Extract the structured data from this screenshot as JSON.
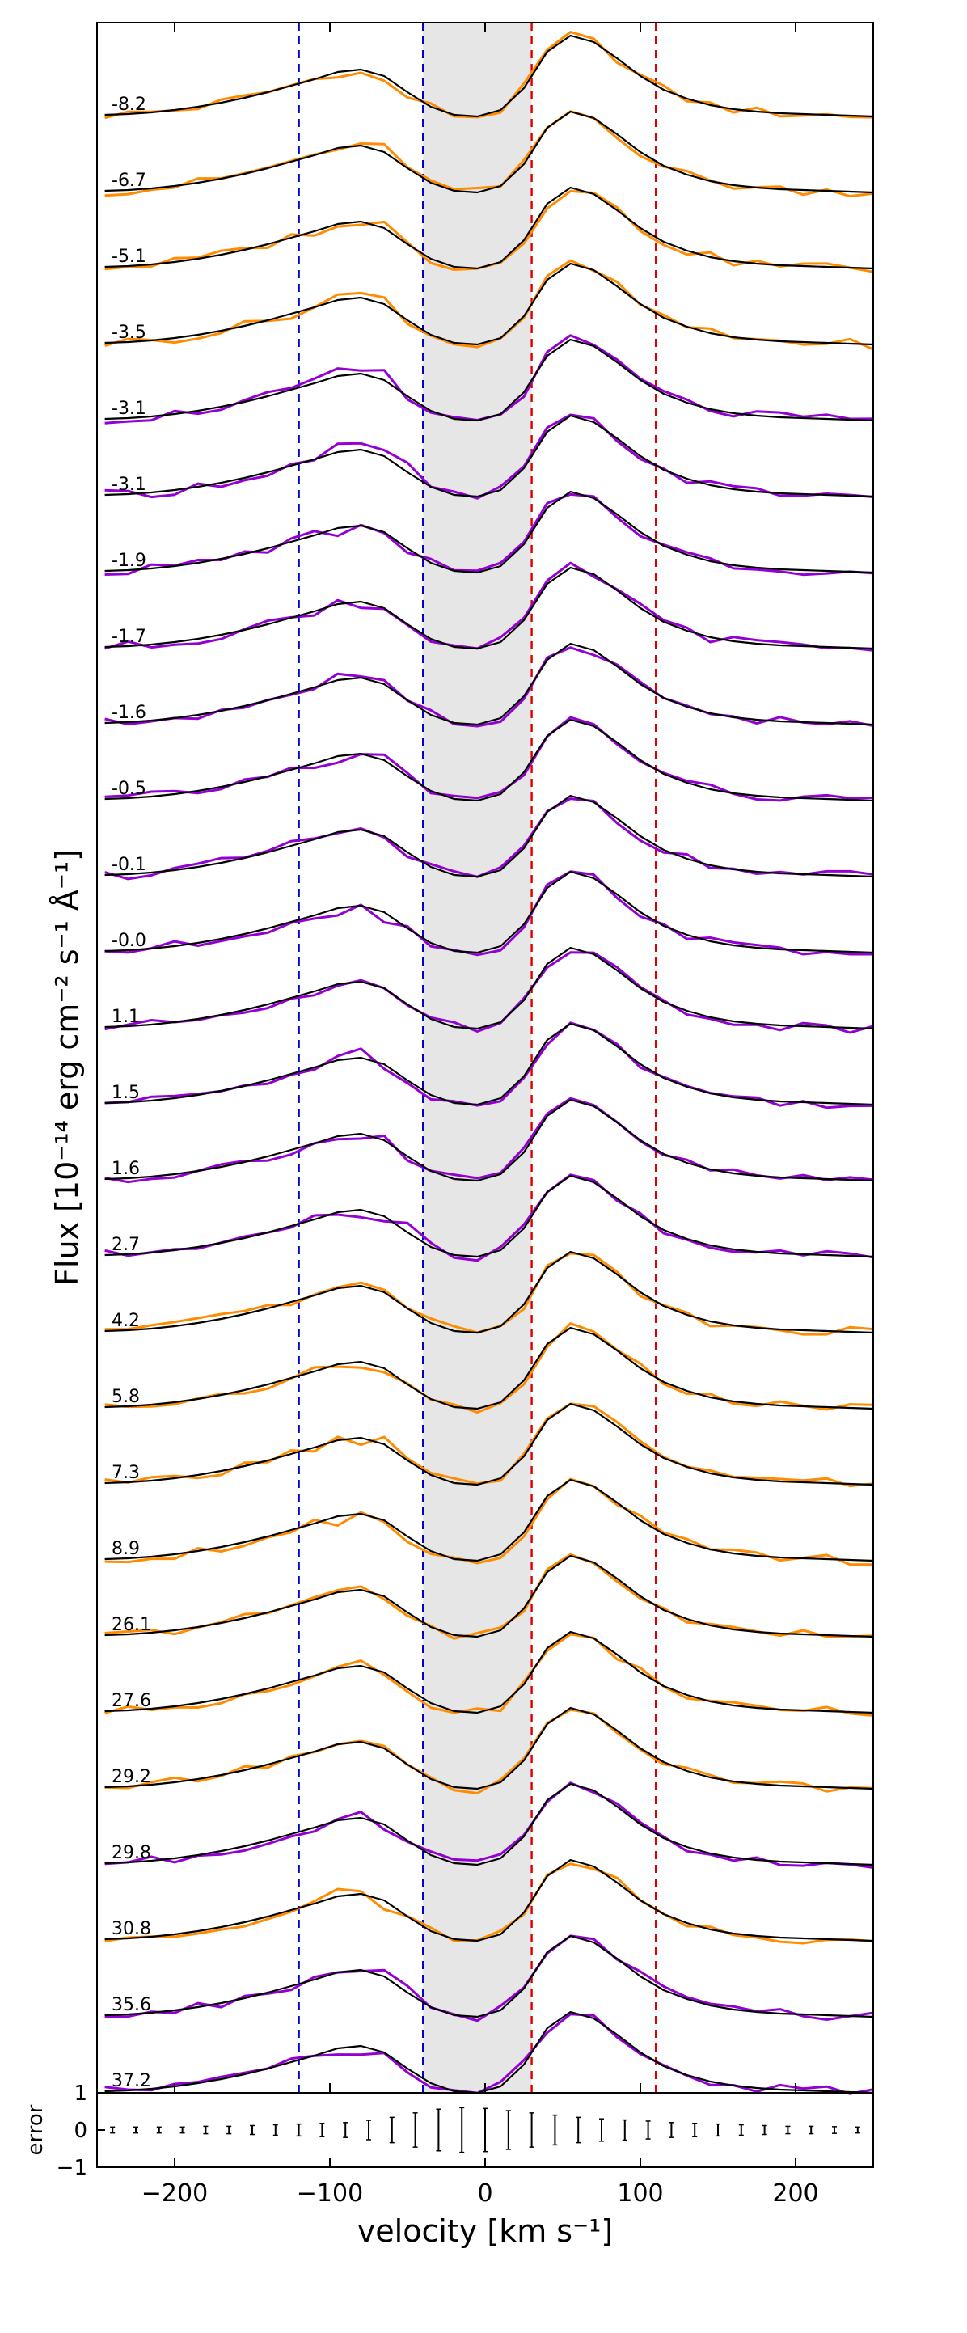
{
  "chart_data": {
    "type": "line",
    "panels": [
      "spectra",
      "error"
    ],
    "xlabel": "velocity [km s⁻¹]",
    "ylabel": "Flux [10⁻¹⁴ erg cm⁻² s⁻¹ Å⁻¹]",
    "error_ylabel": "error",
    "xlim": [
      -250,
      250
    ],
    "x_ticks": [
      -200,
      -100,
      0,
      100,
      200
    ],
    "x_tick_labels": [
      "−200",
      "−100",
      "0",
      "100",
      "200"
    ],
    "error_ylim": [
      -1,
      1
    ],
    "error_y_ticks": [
      1,
      0,
      -1
    ],
    "error_y_tick_labels": [
      "1",
      "0",
      "−1"
    ],
    "shaded_region": [
      -40,
      30
    ],
    "blue_dashed_lines": [
      -120,
      -40
    ],
    "red_dashed_lines": [
      30,
      110
    ],
    "colors": {
      "model": "#000000",
      "orange": "#ff8c00",
      "purple": "#9400d3",
      "blue_line": "#0000cc",
      "red_line": "#dd0000",
      "shade": "#e6e6e6"
    },
    "x_grid": [
      -245,
      -230,
      -215,
      -200,
      -185,
      -170,
      -155,
      -140,
      -125,
      -110,
      -95,
      -80,
      -65,
      -50,
      -35,
      -20,
      -5,
      10,
      25,
      40,
      55,
      70,
      85,
      100,
      115,
      130,
      145,
      160,
      175,
      190,
      205,
      220,
      235,
      250
    ],
    "model_profile": [
      0.02,
      0.03,
      0.05,
      0.08,
      0.12,
      0.17,
      0.23,
      0.3,
      0.38,
      0.46,
      0.55,
      0.58,
      0.5,
      0.3,
      0.12,
      0.02,
      0.0,
      0.08,
      0.35,
      0.8,
      1.0,
      0.92,
      0.72,
      0.5,
      0.33,
      0.22,
      0.14,
      0.09,
      0.06,
      0.04,
      0.03,
      0.02,
      0.01,
      0.0
    ],
    "error_bar_x": [
      -240,
      -225,
      -210,
      -195,
      -180,
      -165,
      -150,
      -135,
      -120,
      -105,
      -90,
      -75,
      -60,
      -45,
      -30,
      -15,
      0,
      15,
      30,
      45,
      60,
      75,
      90,
      105,
      120,
      135,
      150,
      165,
      180,
      195,
      210,
      225,
      240
    ],
    "error_bar_halfwidth": [
      0.08,
      0.08,
      0.08,
      0.08,
      0.1,
      0.1,
      0.12,
      0.14,
      0.16,
      0.18,
      0.2,
      0.26,
      0.34,
      0.46,
      0.56,
      0.6,
      0.58,
      0.52,
      0.46,
      0.4,
      0.34,
      0.3,
      0.27,
      0.24,
      0.2,
      0.18,
      0.16,
      0.14,
      0.12,
      0.1,
      0.1,
      0.09,
      0.08
    ],
    "spectra": [
      {
        "label": "-8.2",
        "color": "orange"
      },
      {
        "label": "-6.7",
        "color": "orange"
      },
      {
        "label": "-5.1",
        "color": "orange"
      },
      {
        "label": "-3.5",
        "color": "orange"
      },
      {
        "label": "-3.1",
        "color": "purple"
      },
      {
        "label": "-3.1",
        "color": "purple"
      },
      {
        "label": "-1.9",
        "color": "purple"
      },
      {
        "label": "-1.7",
        "color": "purple"
      },
      {
        "label": "-1.6",
        "color": "purple"
      },
      {
        "label": "-0.5",
        "color": "purple"
      },
      {
        "label": "-0.1",
        "color": "purple"
      },
      {
        "label": "-0.0",
        "color": "purple"
      },
      {
        "label": "1.1",
        "color": "purple"
      },
      {
        "label": "1.5",
        "color": "purple"
      },
      {
        "label": "1.6",
        "color": "purple"
      },
      {
        "label": "2.7",
        "color": "purple"
      },
      {
        "label": "4.2",
        "color": "orange"
      },
      {
        "label": "5.8",
        "color": "orange"
      },
      {
        "label": "7.3",
        "color": "orange"
      },
      {
        "label": "8.9",
        "color": "orange"
      },
      {
        "label": "26.1",
        "color": "orange"
      },
      {
        "label": "27.6",
        "color": "orange"
      },
      {
        "label": "29.2",
        "color": "orange"
      },
      {
        "label": "29.8",
        "color": "purple"
      },
      {
        "label": "30.8",
        "color": "orange"
      },
      {
        "label": "35.6",
        "color": "purple"
      },
      {
        "label": "37.2",
        "color": "purple"
      }
    ]
  }
}
